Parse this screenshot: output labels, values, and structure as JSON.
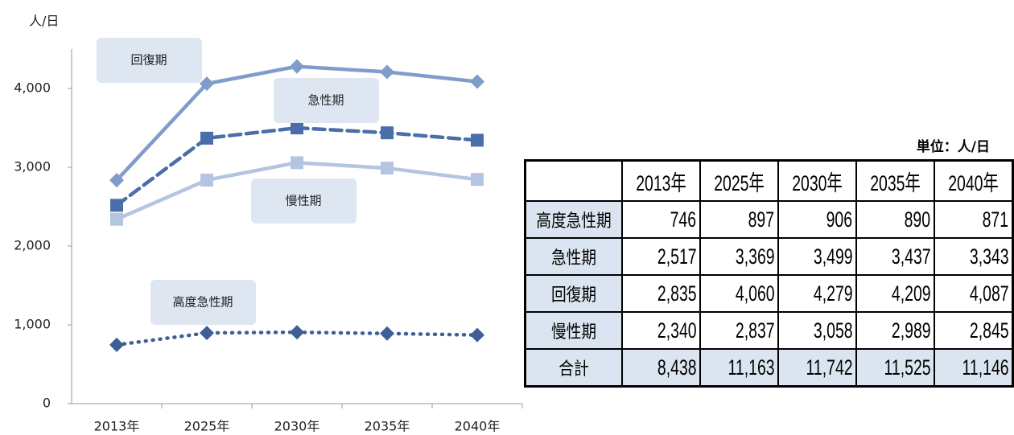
{
  "chart_data": {
    "type": "line",
    "y_label": "人/日",
    "categories": [
      "2013年",
      "2025年",
      "2030年",
      "2035年",
      "2040年"
    ],
    "series": [
      {
        "name": "高度急性期",
        "color": "#3d5f95",
        "dash": "dotted",
        "marker": "diamond",
        "values": [
          746,
          897,
          906,
          890,
          871
        ]
      },
      {
        "name": "急性期",
        "color": "#4a6eaa",
        "dash": "dashed",
        "marker": "square",
        "values": [
          2517,
          3369,
          3499,
          3437,
          3343
        ]
      },
      {
        "name": "回復期",
        "color": "#7f9ccb",
        "dash": "solid",
        "marker": "diamond",
        "values": [
          2835,
          4060,
          4279,
          4209,
          4087
        ]
      },
      {
        "name": "慢性期",
        "color": "#b4c5e1",
        "dash": "solid",
        "marker": "square",
        "values": [
          2340,
          2837,
          3058,
          2989,
          2845
        ]
      }
    ],
    "ylim": [
      0,
      4500
    ],
    "yticks": [
      0,
      {
        "value": 1000,
        "label": "1,000"
      },
      {
        "value": 2000,
        "label": "2,000"
      },
      {
        "value": 3000,
        "label": "3,000"
      },
      {
        "value": 4000,
        "label": "4,000"
      }
    ]
  },
  "table": {
    "unit": "単位：人/日",
    "header": [
      "",
      "2013年",
      "2025年",
      "2030年",
      "2035年",
      "2040年"
    ],
    "rows": [
      [
        "高度急性期",
        "746",
        "897",
        "906",
        "890",
        "871"
      ],
      [
        "急性期",
        "2,517",
        "3,369",
        "3,499",
        "3,437",
        "3,343"
      ],
      [
        "回復期",
        "2,835",
        "4,060",
        "4,279",
        "4,209",
        "4,087"
      ],
      [
        "慢性期",
        "2,340",
        "2,837",
        "3,058",
        "2,989",
        "2,845"
      ],
      [
        "合計",
        "8,438",
        "11,163",
        "11,742",
        "11,525",
        "11,146"
      ]
    ]
  }
}
